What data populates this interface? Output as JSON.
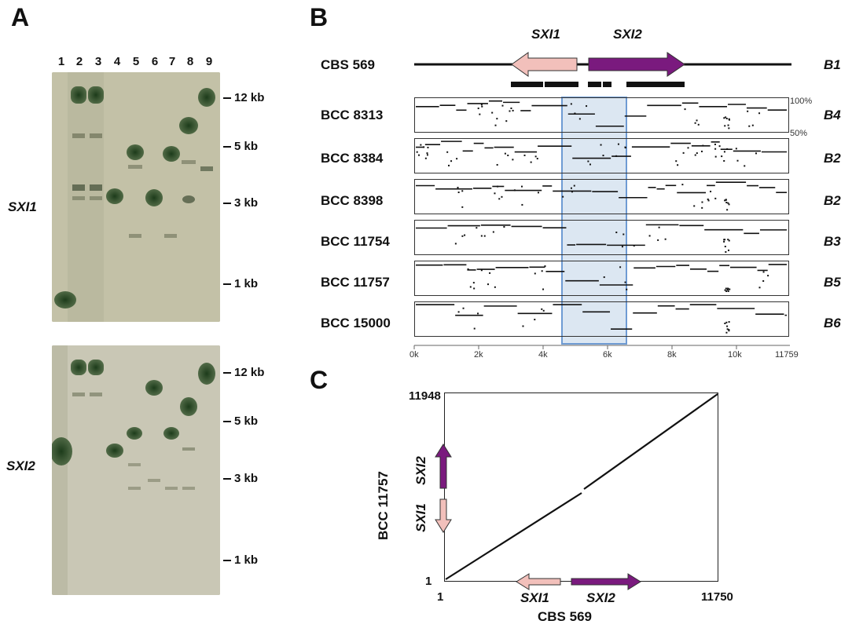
{
  "panel_a": {
    "letter": "A",
    "lanes": [
      "1",
      "2",
      "3",
      "4",
      "5",
      "6",
      "7",
      "8",
      "9"
    ],
    "blots": [
      {
        "probe": "SXI1",
        "markers": [
          "12 kb",
          "5 kb",
          "3 kb",
          "1 kb"
        ]
      },
      {
        "probe": "SXI2",
        "markers": [
          "12 kb",
          "5 kb",
          "3 kb",
          "1 kb"
        ]
      }
    ]
  },
  "panel_b": {
    "letter": "B",
    "reference": {
      "strain": "CBS 569",
      "type": "B1"
    },
    "genes": [
      "SXI1",
      "SXI2"
    ],
    "percent_labels": [
      "100%",
      "50%"
    ],
    "rows": [
      {
        "strain": "BCC 8313",
        "type": "B4"
      },
      {
        "strain": "BCC 8384",
        "type": "B2"
      },
      {
        "strain": "BCC 8398",
        "type": "B2"
      },
      {
        "strain": "BCC 11754",
        "type": "B3"
      },
      {
        "strain": "BCC 11757",
        "type": "B5"
      },
      {
        "strain": "BCC 15000",
        "type": "B6"
      }
    ],
    "x_ticks": [
      "0k",
      "2k",
      "4k",
      "6k",
      "8k",
      "10k",
      "11759"
    ]
  },
  "panel_c": {
    "letter": "C",
    "x_label": "CBS 569",
    "y_label": "BCC 11757",
    "x_start": "1",
    "x_end": "11750",
    "y_start": "1",
    "y_end": "11948",
    "genes": [
      "SXI1",
      "SXI2"
    ]
  },
  "colors": {
    "sxi1": "#f2c0bb",
    "sxi2": "#7a1a7e",
    "highlight": "#dce7f2",
    "highlight_border": "#6e9bd3"
  }
}
